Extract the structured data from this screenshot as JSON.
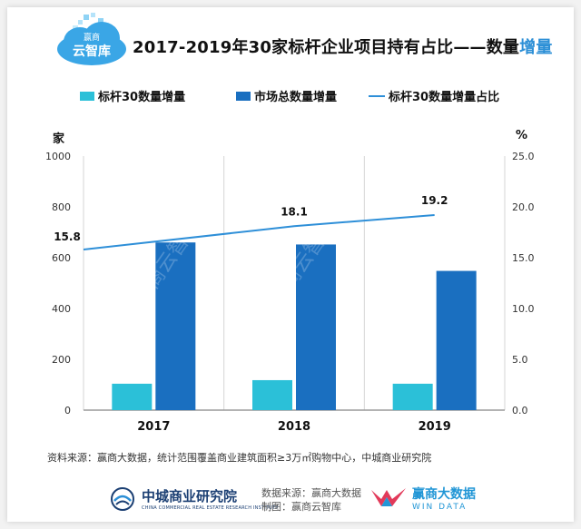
{
  "header": {
    "logo_top": "赢商",
    "logo_bottom": "云智库",
    "title_main": "2017-2019年30家标杆企业项目持有占比——数量",
    "title_highlight": "增量"
  },
  "legend": {
    "bar1": "标杆30数量增量",
    "bar2": "市场总数量增量",
    "line": "标杆30数量增量占比"
  },
  "units": {
    "left": "家",
    "right": "%"
  },
  "colors": {
    "bar1": "#2bc0d8",
    "bar2": "#1a6fc0",
    "line": "#2e8fd8"
  },
  "chart_data": {
    "type": "bar",
    "categories": [
      "2017",
      "2018",
      "2019"
    ],
    "series": [
      {
        "name": "标杆30数量增量",
        "values": [
          104,
          118,
          104
        ]
      },
      {
        "name": "市场总数量增量",
        "values": [
          660,
          652,
          548
        ]
      },
      {
        "name": "标杆30数量增量占比",
        "type": "line",
        "axis": "right",
        "values": [
          15.8,
          18.1,
          19.2
        ]
      }
    ],
    "y_left": {
      "min": 0,
      "max": 1000,
      "ticks": [
        "0",
        "200",
        "400",
        "600",
        "800",
        "1000"
      ]
    },
    "y_right": {
      "min": 0,
      "max": 25,
      "ticks": [
        "0.0",
        "5.0",
        "10.0",
        "15.0",
        "20.0",
        "25.0"
      ]
    },
    "line_labels": [
      "15.8",
      "18.1",
      "19.2"
    ],
    "grid": "vertical",
    "legend_position": "top"
  },
  "watermark": "赢商云智库",
  "footer_note": "资料来源：赢商大数据，统计范围覆盖商业建筑面积≥3万㎡购物中心，中城商业研究院",
  "footer": {
    "org_name": "中城商业研究院",
    "org_sub": "CHINA COMMERCIAL REAL ESTATE RESEARCH INSTITUTE",
    "source_line1": "数据来源：赢商大数据",
    "source_line2": "制图：赢商云智库",
    "brand_name": "赢商大数据",
    "brand_sub": "WIN DATA"
  }
}
